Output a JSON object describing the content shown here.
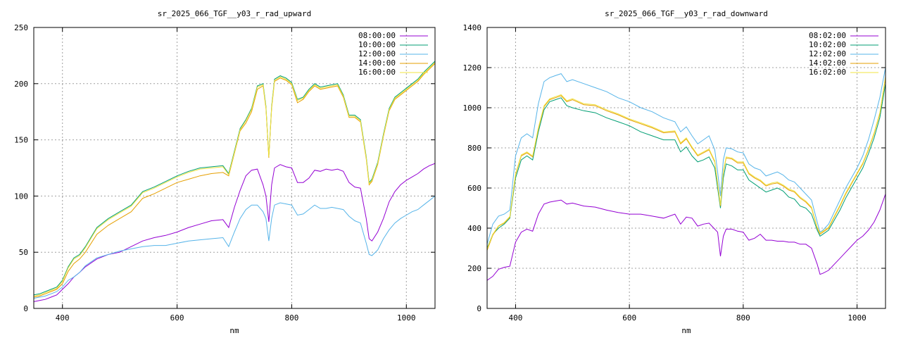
{
  "chart_data": [
    {
      "type": "line",
      "title": "sr_2025_066_TGF__y03_r_rad_upward",
      "xlabel": "nm",
      "ylabel": "",
      "xlim": [
        350,
        1050
      ],
      "ylim": [
        0,
        250
      ],
      "xticks": [
        400,
        600,
        800,
        1000
      ],
      "yticks": [
        0,
        50,
        100,
        150,
        200,
        250
      ],
      "grid": true,
      "legend_position": "top-right",
      "x": [
        350,
        360,
        370,
        380,
        390,
        400,
        410,
        420,
        430,
        440,
        460,
        480,
        500,
        520,
        540,
        560,
        580,
        600,
        620,
        640,
        660,
        680,
        690,
        700,
        710,
        720,
        730,
        740,
        750,
        755,
        760,
        765,
        770,
        780,
        790,
        800,
        810,
        820,
        830,
        840,
        850,
        860,
        870,
        880,
        890,
        900,
        910,
        920,
        930,
        935,
        940,
        950,
        960,
        970,
        980,
        990,
        1000,
        1010,
        1020,
        1030,
        1040,
        1050
      ],
      "series": [
        {
          "name": "08:00:00",
          "color": "#9400d3",
          "values": [
            6,
            7,
            8,
            10,
            12,
            17,
            22,
            28,
            32,
            37,
            44,
            48,
            50,
            55,
            60,
            63,
            65,
            68,
            72,
            75,
            78,
            79,
            72,
            90,
            105,
            118,
            123,
            124,
            110,
            100,
            77,
            110,
            125,
            128,
            126,
            125,
            112,
            112,
            116,
            123,
            122,
            124,
            123,
            124,
            122,
            112,
            108,
            107,
            80,
            62,
            60,
            68,
            80,
            95,
            104,
            110,
            114,
            117,
            120,
            124,
            127,
            129
          ]
        },
        {
          "name": "10:00:00",
          "color": "#009e73",
          "values": [
            12,
            13,
            15,
            17,
            19,
            25,
            37,
            45,
            48,
            55,
            72,
            80,
            86,
            92,
            104,
            108,
            113,
            118,
            122,
            125,
            126,
            127,
            120,
            140,
            160,
            168,
            178,
            198,
            200,
            180,
            135,
            180,
            204,
            207,
            205,
            201,
            186,
            188,
            195,
            200,
            197,
            198,
            199,
            200,
            190,
            172,
            172,
            168,
            135,
            112,
            115,
            130,
            155,
            178,
            188,
            192,
            196,
            200,
            204,
            210,
            215,
            220
          ]
        },
        {
          "name": "12:00:00",
          "color": "#56b4e9",
          "values": [
            9,
            10,
            11,
            13,
            15,
            19,
            25,
            28,
            32,
            38,
            45,
            48,
            51,
            53,
            55,
            56,
            56,
            58,
            60,
            61,
            62,
            63,
            55,
            68,
            80,
            88,
            92,
            92,
            86,
            80,
            60,
            80,
            92,
            94,
            93,
            92,
            83,
            84,
            88,
            92,
            89,
            89,
            90,
            89,
            88,
            82,
            78,
            76,
            58,
            48,
            47,
            52,
            62,
            70,
            76,
            80,
            83,
            86,
            88,
            92,
            96,
            100
          ]
        },
        {
          "name": "14:00:00",
          "color": "#e69f00",
          "values": [
            10,
            11,
            13,
            15,
            17,
            22,
            33,
            40,
            44,
            50,
            66,
            74,
            80,
            86,
            98,
            102,
            107,
            112,
            115,
            118,
            120,
            121,
            118,
            138,
            158,
            165,
            175,
            195,
            198,
            178,
            134,
            178,
            202,
            205,
            203,
            199,
            183,
            186,
            193,
            198,
            195,
            196,
            197,
            198,
            188,
            170,
            170,
            166,
            133,
            110,
            113,
            128,
            153,
            176,
            186,
            190,
            194,
            198,
            202,
            208,
            213,
            218
          ]
        },
        {
          "name": "16:00:00",
          "color": "#f0e442",
          "values": [
            11,
            12,
            14,
            16,
            18,
            24,
            36,
            44,
            47,
            54,
            71,
            79,
            85,
            91,
            103,
            107,
            112,
            117,
            121,
            124,
            125,
            126,
            119,
            139,
            159,
            167,
            177,
            197,
            199,
            179,
            135,
            179,
            203,
            206,
            204,
            200,
            185,
            187,
            194,
            199,
            196,
            197,
            198,
            199,
            189,
            171,
            171,
            167,
            134,
            111,
            114,
            129,
            154,
            177,
            187,
            191,
            195,
            199,
            203,
            209,
            214,
            219
          ]
        }
      ]
    },
    {
      "type": "line",
      "title": "sr_2025_066_TGF__y03_r_rad_downward",
      "xlabel": "nm",
      "ylabel": "",
      "xlim": [
        350,
        1050
      ],
      "ylim": [
        0,
        1400
      ],
      "xticks": [
        400,
        600,
        800,
        1000
      ],
      "yticks": [
        0,
        200,
        400,
        600,
        800,
        1000,
        1200,
        1400
      ],
      "grid": true,
      "legend_position": "top-right",
      "x": [
        350,
        360,
        370,
        380,
        390,
        400,
        410,
        420,
        430,
        440,
        450,
        460,
        470,
        480,
        490,
        500,
        520,
        540,
        560,
        580,
        600,
        620,
        640,
        660,
        680,
        690,
        700,
        710,
        720,
        730,
        740,
        750,
        755,
        760,
        765,
        770,
        780,
        790,
        800,
        810,
        820,
        830,
        840,
        850,
        860,
        870,
        880,
        890,
        900,
        910,
        920,
        930,
        935,
        940,
        950,
        960,
        970,
        980,
        990,
        1000,
        1010,
        1020,
        1030,
        1040,
        1050
      ],
      "series": [
        {
          "name": "08:02:00",
          "color": "#9400d3",
          "values": [
            140,
            160,
            195,
            205,
            210,
            330,
            380,
            395,
            385,
            470,
            520,
            530,
            535,
            540,
            520,
            525,
            510,
            505,
            490,
            478,
            470,
            470,
            460,
            450,
            470,
            420,
            455,
            450,
            410,
            420,
            425,
            395,
            380,
            260,
            360,
            395,
            395,
            385,
            380,
            340,
            350,
            370,
            340,
            340,
            335,
            335,
            330,
            330,
            320,
            320,
            300,
            220,
            170,
            175,
            190,
            220,
            250,
            280,
            310,
            340,
            360,
            390,
            430,
            490,
            570
          ]
        },
        {
          "name": "10:02:00",
          "color": "#009e73",
          "values": [
            300,
            370,
            400,
            420,
            450,
            650,
            740,
            760,
            740,
            880,
            990,
            1030,
            1040,
            1050,
            1010,
            1000,
            985,
            975,
            950,
            930,
            910,
            880,
            860,
            840,
            840,
            780,
            805,
            760,
            730,
            740,
            755,
            700,
            600,
            500,
            650,
            720,
            710,
            690,
            690,
            640,
            620,
            600,
            580,
            590,
            600,
            585,
            555,
            545,
            510,
            500,
            470,
            390,
            360,
            370,
            390,
            440,
            490,
            550,
            600,
            650,
            700,
            770,
            850,
            950,
            1120
          ]
        },
        {
          "name": "12:02:00",
          "color": "#56b4e9",
          "values": [
            320,
            420,
            460,
            470,
            490,
            760,
            850,
            870,
            850,
            1020,
            1130,
            1150,
            1160,
            1170,
            1130,
            1140,
            1120,
            1100,
            1080,
            1050,
            1030,
            1000,
            980,
            950,
            930,
            880,
            905,
            860,
            820,
            840,
            860,
            790,
            680,
            560,
            740,
            800,
            795,
            780,
            775,
            720,
            700,
            690,
            660,
            670,
            680,
            665,
            640,
            630,
            600,
            570,
            540,
            430,
            380,
            390,
            420,
            480,
            540,
            600,
            650,
            700,
            760,
            840,
            940,
            1050,
            1200
          ]
        },
        {
          "name": "14:02:00",
          "color": "#e69f00",
          "values": [
            290,
            365,
            410,
            425,
            455,
            665,
            760,
            775,
            755,
            895,
            1005,
            1040,
            1050,
            1060,
            1030,
            1040,
            1015,
            1010,
            985,
            965,
            940,
            920,
            900,
            875,
            880,
            820,
            845,
            800,
            760,
            775,
            790,
            730,
            620,
            510,
            680,
            750,
            745,
            725,
            725,
            670,
            650,
            635,
            610,
            620,
            625,
            610,
            590,
            580,
            550,
            530,
            500,
            400,
            370,
            380,
            400,
            455,
            510,
            570,
            620,
            670,
            720,
            790,
            870,
            970,
            1150
          ]
        },
        {
          "name": "16:02:00",
          "color": "#f0e442",
          "values": [
            295,
            370,
            412,
            428,
            458,
            670,
            765,
            780,
            760,
            900,
            1010,
            1045,
            1055,
            1065,
            1035,
            1045,
            1020,
            1015,
            990,
            970,
            945,
            925,
            905,
            880,
            885,
            825,
            850,
            805,
            765,
            780,
            795,
            735,
            625,
            515,
            685,
            755,
            750,
            730,
            730,
            675,
            655,
            640,
            615,
            625,
            630,
            615,
            595,
            585,
            555,
            535,
            505,
            405,
            375,
            385,
            405,
            460,
            515,
            575,
            625,
            675,
            725,
            795,
            875,
            975,
            1155
          ]
        }
      ]
    }
  ]
}
